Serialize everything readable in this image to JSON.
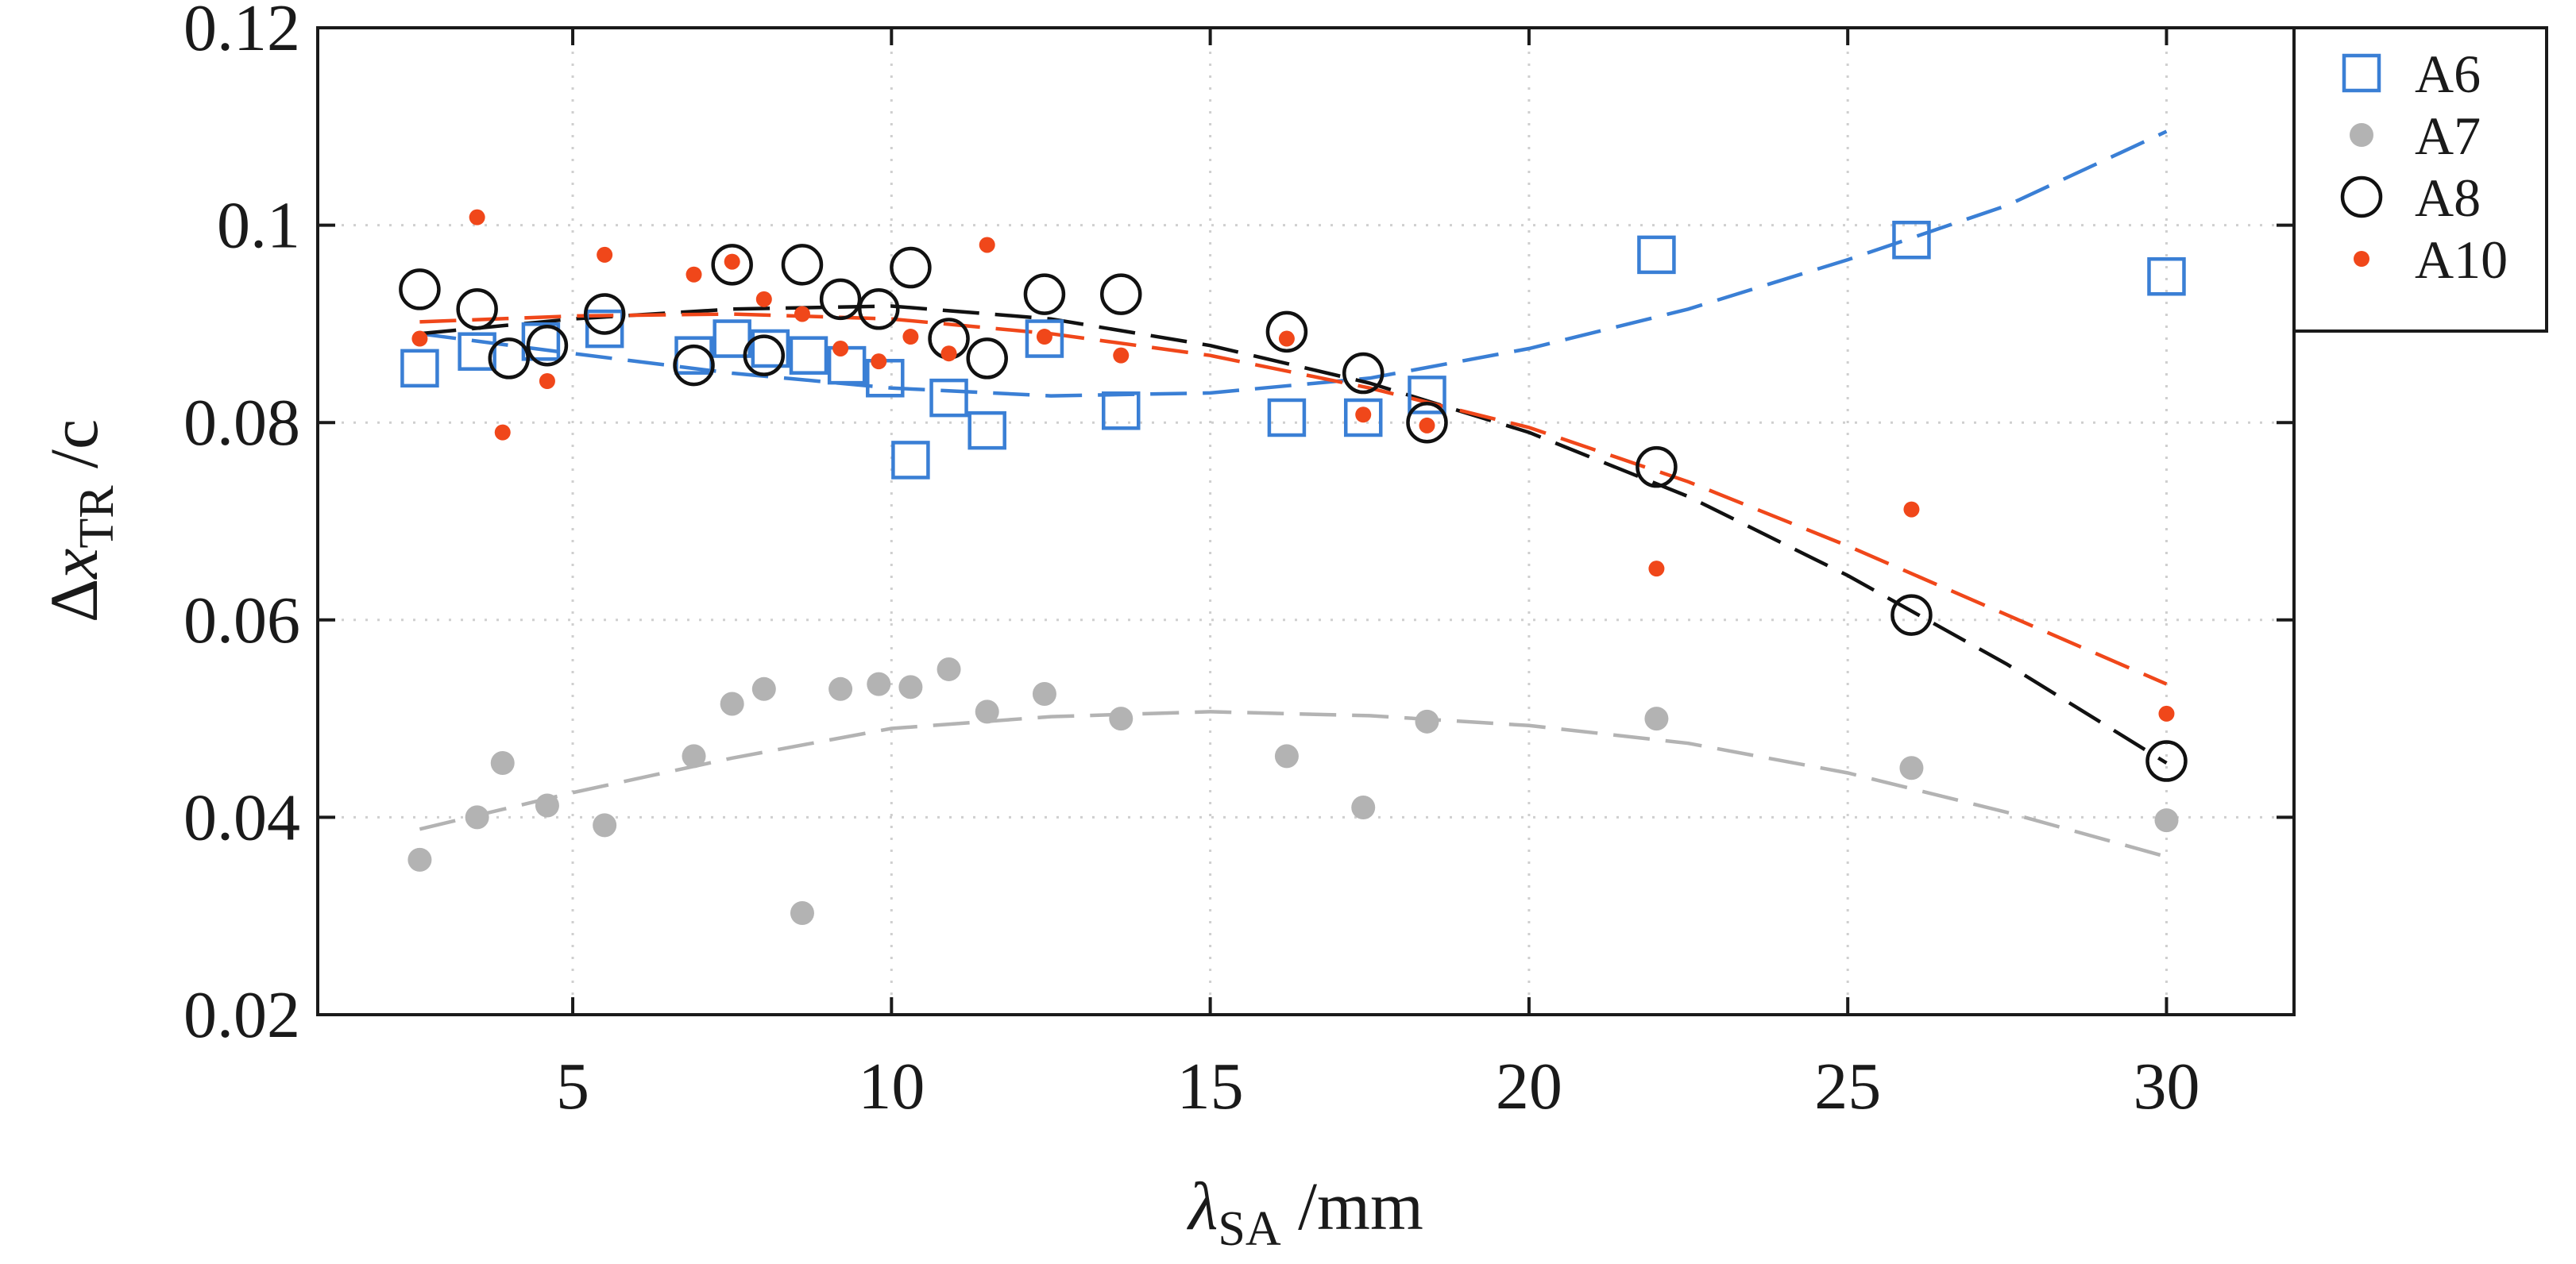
{
  "chart_data": {
    "type": "scatter",
    "xlabel": {
      "symbol": "λ",
      "sub": "SA",
      "unit": " /mm"
    },
    "ylabel": {
      "symbol": "Δ",
      "var": "x",
      "sub": "TR",
      "unit": " /c"
    },
    "xlim": [
      1,
      32
    ],
    "ylim": [
      0.02,
      0.12
    ],
    "xticks": [
      5,
      10,
      15,
      20,
      25,
      30
    ],
    "yticks": [
      0.02,
      0.04,
      0.06,
      0.08,
      0.1,
      0.12
    ],
    "xtick_labels": [
      "5",
      "10",
      "15",
      "20",
      "25",
      "30"
    ],
    "ytick_labels": [
      "0.02",
      "0.04",
      "0.06",
      "0.08",
      "0.1",
      "0.12"
    ],
    "grid": true,
    "legend_position": "top-right-outside",
    "series": [
      {
        "name": "A6",
        "marker": "square",
        "color": "#3a7fd5",
        "points": [
          [
            2.6,
            0.0855
          ],
          [
            3.5,
            0.0872
          ],
          [
            4.5,
            0.0882
          ],
          [
            5.5,
            0.0895
          ],
          [
            6.9,
            0.0868
          ],
          [
            7.5,
            0.0885
          ],
          [
            8.1,
            0.0875
          ],
          [
            8.7,
            0.0868
          ],
          [
            9.3,
            0.0858
          ],
          [
            9.9,
            0.0845
          ],
          [
            10.3,
            0.0762
          ],
          [
            10.9,
            0.0825
          ],
          [
            11.5,
            0.0792
          ],
          [
            12.4,
            0.0885
          ],
          [
            13.6,
            0.0812
          ],
          [
            16.2,
            0.0805
          ],
          [
            17.4,
            0.0805
          ],
          [
            18.4,
            0.0828
          ],
          [
            22.0,
            0.097
          ],
          [
            26.0,
            0.0985
          ],
          [
            30.0,
            0.0948
          ]
        ],
        "fit": [
          [
            2.6,
            0.089
          ],
          [
            5,
            0.087
          ],
          [
            7.5,
            0.085
          ],
          [
            10,
            0.0835
          ],
          [
            12.5,
            0.0827
          ],
          [
            15,
            0.083
          ],
          [
            17.5,
            0.0845
          ],
          [
            20,
            0.0875
          ],
          [
            22.5,
            0.0915
          ],
          [
            25,
            0.0965
          ],
          [
            27.5,
            0.102
          ],
          [
            30,
            0.1095
          ]
        ]
      },
      {
        "name": "A7",
        "marker": "dot",
        "color": "#b3b3b3",
        "points": [
          [
            2.6,
            0.0357
          ],
          [
            3.5,
            0.04
          ],
          [
            3.9,
            0.0455
          ],
          [
            4.6,
            0.0412
          ],
          [
            5.5,
            0.0392
          ],
          [
            6.9,
            0.0462
          ],
          [
            7.5,
            0.0515
          ],
          [
            8.0,
            0.053
          ],
          [
            8.6,
            0.0303
          ],
          [
            9.2,
            0.053
          ],
          [
            9.8,
            0.0535
          ],
          [
            10.3,
            0.0532
          ],
          [
            10.9,
            0.055
          ],
          [
            11.5,
            0.0507
          ],
          [
            12.4,
            0.0525
          ],
          [
            13.6,
            0.05
          ],
          [
            16.2,
            0.0462
          ],
          [
            17.4,
            0.041
          ],
          [
            18.4,
            0.0497
          ],
          [
            22.0,
            0.05
          ],
          [
            26.0,
            0.045
          ],
          [
            30.0,
            0.0397
          ]
        ],
        "fit": [
          [
            2.6,
            0.0388
          ],
          [
            5,
            0.0425
          ],
          [
            7.5,
            0.046
          ],
          [
            10,
            0.049
          ],
          [
            12.5,
            0.0502
          ],
          [
            15,
            0.0507
          ],
          [
            17.5,
            0.0503
          ],
          [
            20,
            0.0493
          ],
          [
            22.5,
            0.0475
          ],
          [
            25,
            0.0445
          ],
          [
            27.5,
            0.0405
          ],
          [
            30,
            0.036
          ]
        ]
      },
      {
        "name": "A8",
        "marker": "circle",
        "color": "#111111",
        "points": [
          [
            2.6,
            0.0935
          ],
          [
            3.5,
            0.0915
          ],
          [
            4.0,
            0.0865
          ],
          [
            4.6,
            0.0878
          ],
          [
            5.5,
            0.091
          ],
          [
            6.9,
            0.0858
          ],
          [
            7.5,
            0.096
          ],
          [
            8.0,
            0.0868
          ],
          [
            8.6,
            0.096
          ],
          [
            9.2,
            0.0925
          ],
          [
            9.8,
            0.0915
          ],
          [
            10.3,
            0.0957
          ],
          [
            10.9,
            0.0885
          ],
          [
            11.5,
            0.0865
          ],
          [
            12.4,
            0.093
          ],
          [
            13.6,
            0.093
          ],
          [
            16.2,
            0.0892
          ],
          [
            17.4,
            0.085
          ],
          [
            18.4,
            0.08
          ],
          [
            22.0,
            0.0755
          ],
          [
            26.0,
            0.0605
          ],
          [
            30.0,
            0.0457
          ]
        ],
        "fit": [
          [
            2.6,
            0.089
          ],
          [
            5,
            0.0905
          ],
          [
            7.5,
            0.0915
          ],
          [
            10,
            0.0918
          ],
          [
            12.5,
            0.0905
          ],
          [
            15,
            0.0878
          ],
          [
            17.5,
            0.084
          ],
          [
            20,
            0.079
          ],
          [
            22.5,
            0.0725
          ],
          [
            25,
            0.0645
          ],
          [
            27.5,
            0.0555
          ],
          [
            30,
            0.0455
          ]
        ]
      },
      {
        "name": "A10",
        "marker": "small-dot",
        "color": "#f0471a",
        "points": [
          [
            2.6,
            0.0885
          ],
          [
            3.5,
            0.1008
          ],
          [
            3.9,
            0.079
          ],
          [
            4.6,
            0.0842
          ],
          [
            5.5,
            0.097
          ],
          [
            6.9,
            0.095
          ],
          [
            7.5,
            0.0963
          ],
          [
            8.0,
            0.0925
          ],
          [
            8.6,
            0.091
          ],
          [
            9.2,
            0.0875
          ],
          [
            9.8,
            0.0862
          ],
          [
            10.3,
            0.0887
          ],
          [
            10.9,
            0.087
          ],
          [
            11.5,
            0.098
          ],
          [
            12.4,
            0.0887
          ],
          [
            13.6,
            0.0868
          ],
          [
            16.2,
            0.0885
          ],
          [
            17.4,
            0.0808
          ],
          [
            18.4,
            0.0797
          ],
          [
            22.0,
            0.0652
          ],
          [
            26.0,
            0.0712
          ],
          [
            30.0,
            0.0505
          ]
        ],
        "fit": [
          [
            2.6,
            0.0902
          ],
          [
            5,
            0.0908
          ],
          [
            7.5,
            0.091
          ],
          [
            10,
            0.0905
          ],
          [
            12.5,
            0.089
          ],
          [
            15,
            0.0868
          ],
          [
            17.5,
            0.0835
          ],
          [
            20,
            0.0795
          ],
          [
            22.5,
            0.074
          ],
          [
            25,
            0.0675
          ],
          [
            27.5,
            0.0605
          ],
          [
            30,
            0.0535
          ]
        ]
      }
    ]
  }
}
